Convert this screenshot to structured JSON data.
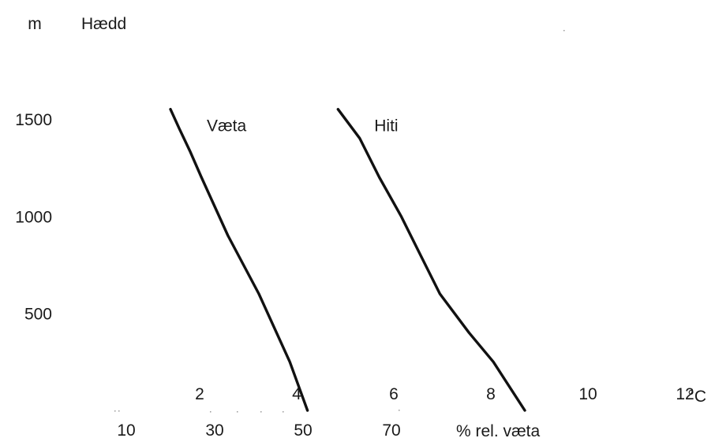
{
  "chart_data": {
    "type": "line",
    "title": "",
    "y_unit": "m",
    "ylabel": "Hædd",
    "ylim": [
      0,
      1500
    ],
    "y_ticks": [
      "500",
      "1000",
      "1500"
    ],
    "x_temp_ticks": [
      "2",
      "4",
      "6",
      "8",
      "10",
      "12"
    ],
    "x_temp_unit": "°C",
    "x_temp_lim": [
      0,
      14
    ],
    "x_hum_ticks": [
      "10",
      "30",
      "50",
      "70"
    ],
    "x_hum_unit": "% rel. væta",
    "x_hum_lim": [
      0,
      100
    ],
    "grid": false,
    "legend": "none",
    "series": [
      {
        "name": "Væta",
        "axis": "humidity",
        "x": [
          51,
          47,
          44,
          40,
          36.5,
          33,
          30,
          27,
          24.5,
          22,
          20
        ],
        "y": [
          0,
          250,
          400,
          600,
          750,
          900,
          1050,
          1200,
          1330,
          1450,
          1550
        ]
      },
      {
        "name": "Hiti",
        "axis": "temperature",
        "x": [
          8.7,
          8.05,
          7.55,
          6.95,
          6.55,
          6.15,
          5.7,
          5.3,
          4.85
        ],
        "y": [
          0,
          250,
          400,
          600,
          800,
          1000,
          1200,
          1400,
          1550
        ]
      }
    ]
  }
}
